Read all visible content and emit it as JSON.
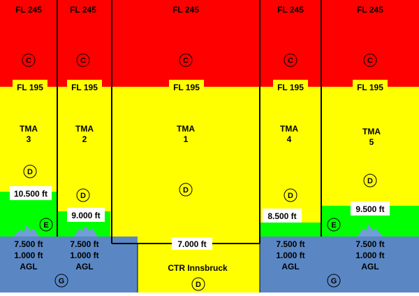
{
  "colors": {
    "class_c": "#ff0000",
    "class_d": "#ffff00",
    "class_e": "#00ff00",
    "class_g": "#5a87c4",
    "mountain": "#6f9fd5",
    "border": "#000000"
  },
  "columns": [
    {
      "id": "tma3",
      "top_label": "FL 245",
      "fl_label": "FL 195",
      "class_upper": "C",
      "name_line1": "TMA",
      "name_line2": "3",
      "class_mid": "D",
      "lower_limit": "10.500 ft",
      "class_lower": "E",
      "g_line1": "7.500 ft",
      "g_line2": "1.000 ft",
      "g_line3": "AGL",
      "class_bottom": "G"
    },
    {
      "id": "tma2",
      "top_label": "FL 245",
      "fl_label": "FL 195",
      "class_upper": "C",
      "name_line1": "TMA",
      "name_line2": "2",
      "class_mid": "D",
      "lower_limit": "9.000 ft",
      "g_line1": "7.500 ft",
      "g_line2": "1.000 ft",
      "g_line3": "AGL"
    },
    {
      "id": "tma1",
      "top_label": "FL 245",
      "fl_label": "FL 195",
      "class_upper": "C",
      "name_line1": "TMA",
      "name_line2": "1",
      "class_mid": "D",
      "lower_limit": "7.000 ft",
      "ctr_label": "CTR Innsbruck",
      "class_bottom": "D"
    },
    {
      "id": "tma4",
      "top_label": "FL 245",
      "fl_label": "FL 195",
      "class_upper": "C",
      "name_line1": "TMA",
      "name_line2": "4",
      "class_mid": "D",
      "lower_limit": "8.500 ft",
      "g_line1": "7.500 ft",
      "g_line2": "1.000 ft",
      "g_line3": "AGL"
    },
    {
      "id": "tma5",
      "top_label": "FL 245",
      "fl_label": "FL 195",
      "class_upper": "C",
      "name_line1": "TMA",
      "name_line2": "5",
      "class_mid": "D",
      "lower_limit": "9.500 ft",
      "class_lower": "E",
      "g_line1": "7.500 ft",
      "g_line2": "1.000 ft",
      "g_line3": "AGL",
      "class_bottom": "G"
    }
  ]
}
